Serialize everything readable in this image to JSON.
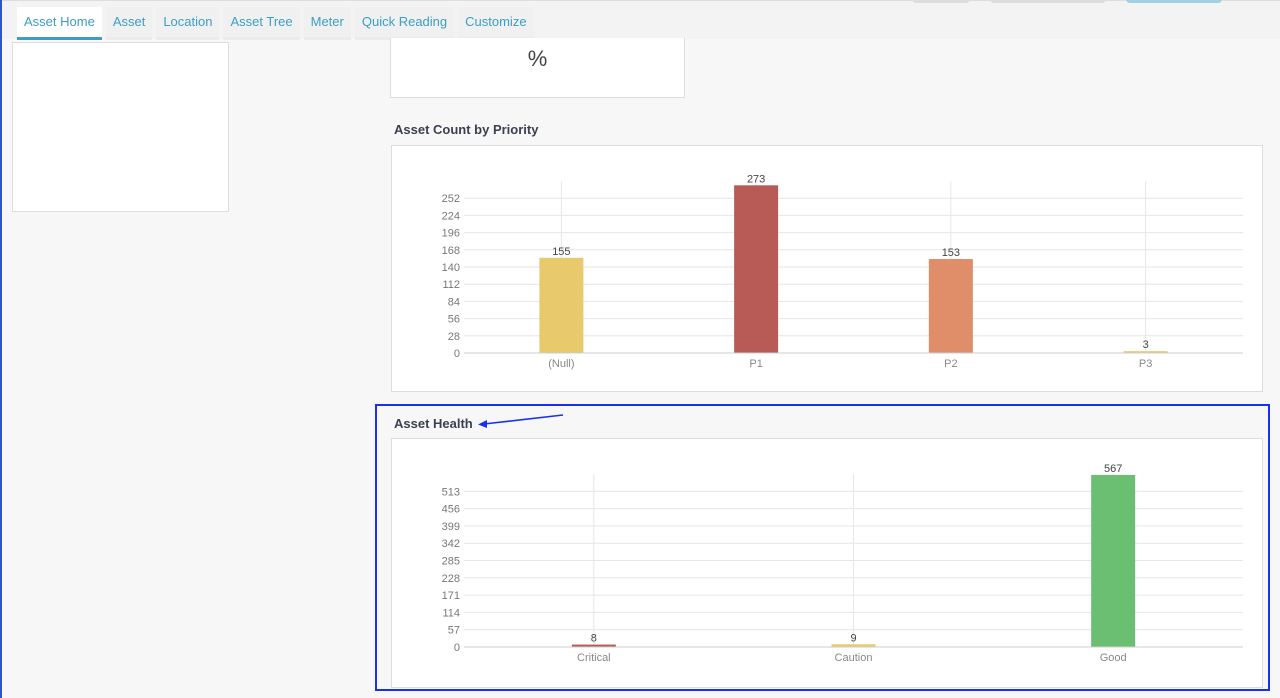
{
  "tabs": [
    "Asset Home",
    "Asset",
    "Location",
    "Asset Tree",
    "Meter",
    "Quick Reading",
    "Customize"
  ],
  "kpi": {
    "unit": "%"
  },
  "chart_data": [
    {
      "type": "bar",
      "title": "Asset Count by Priority",
      "categories": [
        "(Null)",
        "P1",
        "P2",
        "P3"
      ],
      "values": [
        155,
        273,
        153,
        3
      ],
      "colors": [
        "#e8c96c",
        "#b85a55",
        "#e08d6a",
        "#e8c96c"
      ],
      "yticks": [
        0,
        28,
        56,
        84,
        112,
        140,
        168,
        196,
        224,
        252
      ],
      "ylim": [
        0,
        280
      ],
      "xlabel": "",
      "ylabel": ""
    },
    {
      "type": "bar",
      "title": "Asset Health",
      "categories": [
        "Critical",
        "Caution",
        "Good"
      ],
      "values": [
        8,
        9,
        567
      ],
      "colors": [
        "#b85a55",
        "#e8c96c",
        "#6abf73"
      ],
      "yticks": [
        0,
        57,
        114,
        171,
        228,
        285,
        342,
        399,
        456,
        513
      ],
      "ylim": [
        0,
        570
      ],
      "xlabel": "",
      "ylabel": ""
    }
  ],
  "colors": {
    "highlight": "#1a2ff0",
    "tab": "#3a9fc3"
  }
}
